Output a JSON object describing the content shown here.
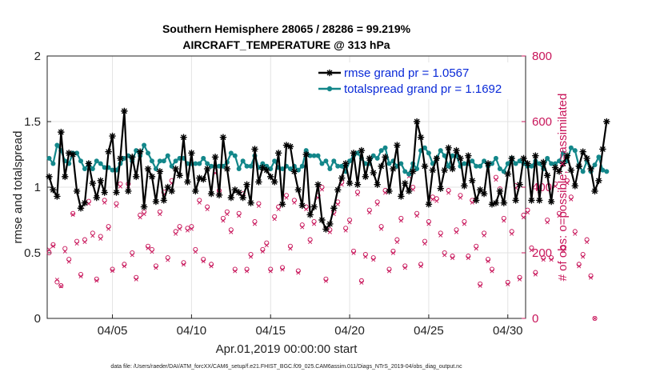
{
  "chart_data": {
    "type": "line",
    "title": "Southern Hemisphere 28065 / 28286 = 99.219%",
    "subtitle": "AIRCRAFT_TEMPERATURE @ 313 hPa",
    "xlabel": "Apr.01,2019 00:00:00 start",
    "ylabel": "rmse and totalspread",
    "ylabel_right": "# of obs: o=possible; ×=assimilated",
    "xlim": [
      0.875,
      31.125
    ],
    "ylim": [
      0,
      2
    ],
    "ylim_right": [
      0,
      800
    ],
    "xticks": [
      {
        "x": 5,
        "label": "04/05"
      },
      {
        "x": 10,
        "label": "04/10"
      },
      {
        "x": 15,
        "label": "04/15"
      },
      {
        "x": 20,
        "label": "04/20"
      },
      {
        "x": 25,
        "label": "04/25"
      },
      {
        "x": 30,
        "label": "04/30"
      }
    ],
    "yticks": [
      "0",
      "0.5",
      "1",
      "1.5",
      "2"
    ],
    "yticks_right": [
      "0",
      "200",
      "400",
      "600",
      "800"
    ],
    "grid": true,
    "legend": {
      "position": "top-right",
      "entries": [
        "rmse grand pr = 1.0567",
        "totalspread grand pr = 1.1692"
      ]
    },
    "colors": {
      "rmse": "#000000",
      "spread": "#13878a",
      "obs": "#c8155a",
      "legend_text": "#0a2ad8"
    },
    "rmse": [
      1.08,
      0.98,
      0.93,
      1.42,
      1.08,
      1.26,
      1.25,
      0.97,
      0.84,
      0.88,
      1.18,
      1.03,
      0.92,
      1.05,
      0.96,
      1.27,
      1.39,
      0.96,
      1.22,
      1.58,
      0.97,
      1.23,
      1.08,
      1.27,
      0.85,
      1.14,
      1.08,
      0.89,
      1.12,
      0.9,
      1.0,
      0.97,
      1.14,
      1.09,
      1.38,
      1.04,
      1.26,
      0.97,
      1.07,
      1.06,
      1.14,
      0.95,
      1.23,
      0.94,
      1.38,
      1.14,
      0.92,
      0.98,
      0.96,
      0.92,
      1.02,
      0.88,
      1.29,
      1.04,
      1.15,
      1.13,
      1.08,
      1.04,
      1.26,
      0.87,
      1.32,
      1.31,
      1.12,
      0.98,
      0.86,
      1.25,
      0.79,
      0.85,
      1.02,
      0.75,
      0.68,
      0.72,
      0.84,
      0.98,
      1.07,
      1.18,
      1.03,
      1.26,
      1.02,
      1.28,
      1.08,
      1.22,
      1.11,
      1.02,
      1.16,
      1.23,
      0.97,
      1.14,
      1.32,
      0.93,
      1.03,
      0.97,
      1.12,
      1.5,
      1.38,
      1.16,
      0.87,
      1.13,
      1.22,
      0.99,
      1.13,
      1.3,
      1.14,
      1.28,
      1.22,
      1.01,
      1.24,
      1.05,
      0.9,
      0.98,
      0.95,
      1.18,
      0.87,
      0.88,
      0.97,
      0.88,
      1.1,
      1.22,
      0.9,
      1.02,
      1.22,
      1.18,
      0.9,
      1.24,
      0.9,
      1.19,
      1.09,
      0.89,
      1.15,
      1.12,
      1.18,
      1.24,
      1.13,
      1.01,
      1.16,
      1.27,
      1.22,
      1.14,
      0.97,
      1.05,
      1.29,
      1.5
    ],
    "spread": [
      1.22,
      1.18,
      1.32,
      1.28,
      1.2,
      1.18,
      1.26,
      1.26,
      1.2,
      1.14,
      1.18,
      1.14,
      1.2,
      1.18,
      1.15,
      1.15,
      1.13,
      1.13,
      1.18,
      1.22,
      1.24,
      1.2,
      1.28,
      1.24,
      1.32,
      1.26,
      1.2,
      1.14,
      1.2,
      1.2,
      1.24,
      1.16,
      1.2,
      1.22,
      1.22,
      1.18,
      1.18,
      1.18,
      1.18,
      1.22,
      1.18,
      1.16,
      1.16,
      1.16,
      1.16,
      1.19,
      1.26,
      1.24,
      1.14,
      1.2,
      1.16,
      1.16,
      1.24,
      1.15,
      1.18,
      1.16,
      1.14,
      1.2,
      1.15,
      1.14,
      1.16,
      1.14,
      1.16,
      1.13,
      1.16,
      1.28,
      1.24,
      1.24,
      1.24,
      1.18,
      1.2,
      1.14,
      1.2,
      1.16,
      1.16,
      1.12,
      1.2,
      1.24,
      1.26,
      1.22,
      1.18,
      1.18,
      1.24,
      1.22,
      1.28,
      1.3,
      1.18,
      1.2,
      1.16,
      1.18,
      1.12,
      1.1,
      1.18,
      1.14,
      1.28,
      1.3,
      1.26,
      1.18,
      1.22,
      1.28,
      1.24,
      1.16,
      1.24,
      1.24,
      1.16,
      1.18,
      1.18,
      1.2,
      1.16,
      1.16,
      1.2,
      1.16,
      1.18,
      1.22,
      1.14,
      1.12,
      1.18,
      1.22,
      1.18,
      1.2,
      1.18,
      1.16,
      1.16,
      1.2,
      1.18,
      1.14,
      1.22,
      1.18,
      1.18,
      1.2,
      1.26,
      1.2,
      1.3,
      1.28,
      1.16,
      1.12,
      1.2,
      1.12,
      1.17,
      1.23,
      1.13,
      1.12
    ],
    "obs_possible": [
      200,
      225,
      111,
      100,
      213,
      180,
      320,
      235,
      134,
      240,
      357,
      260,
      120,
      250,
      360,
      280,
      150,
      350,
      410,
      165,
      410,
      200,
      125,
      315,
      325,
      220,
      210,
      160,
      325,
      385,
      185,
      420,
      265,
      280,
      170,
      275,
      280,
      210,
      360,
      180,
      340,
      165,
      450,
      390,
      305,
      325,
      270,
      150,
      320,
      380,
      150,
      195,
      295,
      350,
      210,
      230,
      150,
      310,
      340,
      155,
      375,
      220,
      360,
      145,
      285,
      340,
      240,
      295,
      375,
      400,
      120,
      270,
      325,
      355,
      415,
      275,
      300,
      205,
      385,
      115,
      195,
      330,
      185,
      355,
      280,
      390,
      150,
      205,
      240,
      305,
      160,
      440,
      400,
      320,
      165,
      235,
      295,
      370,
      365,
      260,
      200,
      390,
      190,
      270,
      375,
      295,
      190,
      360,
      220,
      105,
      260,
      180,
      150,
      430,
      395,
      305,
      110,
      265,
      405,
      125,
      315,
      330,
      215,
      140,
      395,
      185,
      300,
      185,
      410,
      320,
      215,
      420,
      370,
      265,
      165,
      195,
      240,
      130,
      0
    ],
    "obs_assimilated": [
      210,
      220,
      118,
      98,
      204,
      173,
      316,
      228,
      128,
      233,
      350,
      252,
      115,
      243,
      353,
      273,
      145,
      343,
      402,
      159,
      403,
      193,
      119,
      308,
      318,
      214,
      203,
      154,
      318,
      378,
      178,
      412,
      258,
      273,
      164,
      268,
      273,
      203,
      353,
      174,
      333,
      159,
      443,
      383,
      298,
      318,
      263,
      144,
      313,
      373,
      144,
      188,
      288,
      343,
      204,
      223,
      144,
      303,
      333,
      149,
      368,
      213,
      353,
      139,
      278,
      333,
      233,
      288,
      368,
      393,
      114,
      263,
      318,
      348,
      408,
      268,
      293,
      199,
      378,
      109,
      188,
      323,
      179,
      348,
      273,
      383,
      144,
      199,
      233,
      298,
      154,
      433,
      393,
      313,
      159,
      228,
      288,
      363,
      358,
      253,
      193,
      383,
      184,
      263,
      368,
      288,
      184,
      353,
      213,
      99,
      253,
      174,
      144,
      423,
      388,
      298,
      104,
      258,
      398,
      119,
      308,
      323,
      208,
      134,
      388,
      179,
      293,
      179,
      403,
      313,
      208,
      413,
      363,
      258,
      159,
      188,
      233,
      124,
      0
    ],
    "footer": "data file: /Users/raeder/DAI/ATM_forcXX/CAM6_setup/f.e21.FHIST_BGC.f09_025.CAM6assim.011/Diags_NTrS_2019-04/obs_diag_output.nc"
  }
}
